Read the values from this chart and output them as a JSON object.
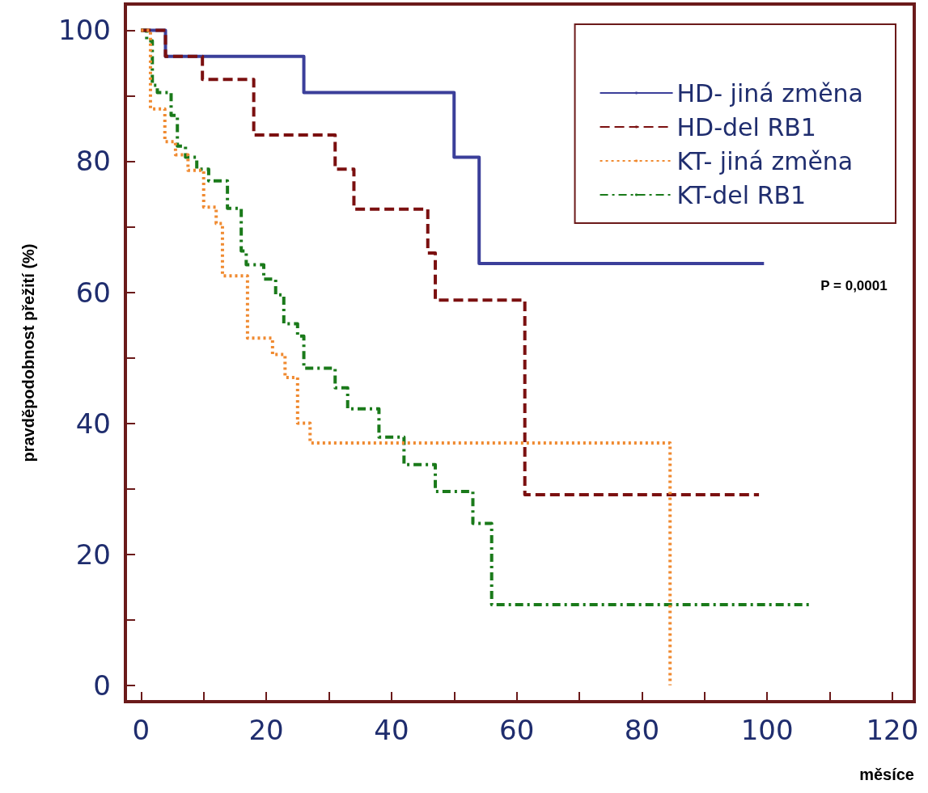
{
  "chart_data": {
    "type": "step",
    "xlabel": "měsíce",
    "ylabel": "pravděpodobnost přežití (%)",
    "annotations": [
      "P = 0,0001"
    ],
    "legend": "top right",
    "xlim": [
      -2.5,
      123.5
    ],
    "ylim": [
      -2.5,
      104
    ],
    "xticks": [
      0,
      {
        "value": 10,
        "label": null
      },
      20,
      {
        "value": 30,
        "label": null
      },
      40,
      {
        "value": 50,
        "label": null
      },
      60,
      {
        "value": 70,
        "label": null
      },
      80,
      {
        "value": 90,
        "label": null
      },
      100,
      {
        "value": 110,
        "label": null
      },
      120
    ],
    "yticks": [
      0,
      {
        "value": 10,
        "label": null
      },
      20,
      {
        "value": 30,
        "label": null
      },
      40,
      {
        "value": 50,
        "label": null
      },
      60,
      {
        "value": 70,
        "label": null
      },
      80,
      {
        "value": 90,
        "label": null
      },
      100
    ],
    "series": [
      {
        "name": "HD- jiná změna",
        "color": "#3b3f9a",
        "line_style": "solid",
        "x": [
          0,
          3.9,
          26,
          50,
          54,
          99.5
        ],
        "values": [
          100,
          96,
          90.5,
          80.6,
          64.4,
          64.4
        ]
      },
      {
        "name": "HD-del RB1",
        "color": "#7b1010",
        "line_style": "dashed",
        "x": [
          0,
          3.9,
          9.8,
          18,
          31,
          34,
          45.8,
          47,
          61.3,
          98.7
        ],
        "values": [
          100,
          96,
          92.5,
          84,
          78.8,
          72.7,
          66,
          58.8,
          29.1,
          29.1
        ]
      },
      {
        "name": "KT- jiná změna",
        "color": "#f08a30",
        "line_style": "dotted",
        "x": [
          0,
          1.5,
          3.8,
          5.5,
          7.5,
          10,
          12,
          13,
          17,
          21,
          23,
          25,
          27,
          84.5
        ],
        "values": [
          100,
          88,
          83,
          81,
          78.6,
          73,
          70.5,
          62.5,
          53,
          50.5,
          47,
          40,
          37,
          0
        ]
      },
      {
        "name": "KT-del RB1",
        "color": "#1a7a1a",
        "line_style": "dashdot",
        "x": [
          0,
          0.9,
          1.8,
          2.6,
          4.8,
          5.8,
          7.1,
          8.9,
          10.8,
          13.8,
          16,
          16.8,
          19.6,
          21.5,
          22.8,
          25,
          26,
          31,
          33,
          38,
          42,
          47,
          53,
          56,
          106.7
        ],
        "values": [
          100,
          98.4,
          91.6,
          90.5,
          87,
          82.3,
          80.6,
          78.8,
          77,
          72.8,
          66.3,
          64.2,
          62,
          59.6,
          55.2,
          53.3,
          48.4,
          45.4,
          42.2,
          37.9,
          33.7,
          29.6,
          24.7,
          12.3,
          12.3
        ]
      }
    ]
  }
}
